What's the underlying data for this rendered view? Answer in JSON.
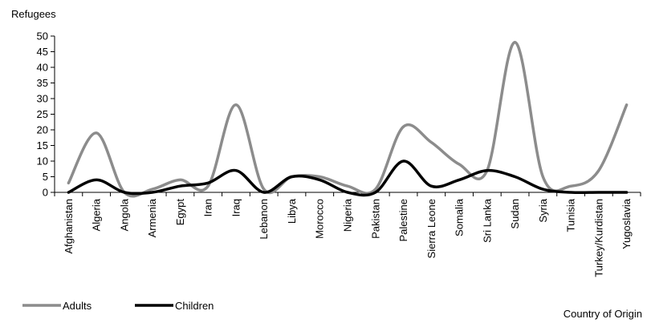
{
  "chart_data": {
    "type": "line",
    "title": "",
    "ylabel": "Refugees",
    "xlabel": "Country of Origin",
    "ylim": [
      0,
      50
    ],
    "yticks": [
      0,
      5,
      10,
      15,
      20,
      25,
      30,
      35,
      40,
      45,
      50
    ],
    "grid": false,
    "legend_position": "bottom-left",
    "smooth": true,
    "categories": [
      "Afghanistan",
      "Algeria",
      "Angola",
      "Armenia",
      "Egypt",
      "Iran",
      "Iraq",
      "Lebanon",
      "Libya",
      "Morocco",
      "Nigeria",
      "Pakistan",
      "Palestine",
      "Sierra Leone",
      "Somalia",
      "Sri Lanka",
      "Sudan",
      "Syria",
      "Tunisia",
      "Turkey/Kurdistan",
      "Yugoslavia"
    ],
    "series": [
      {
        "name": "Adults",
        "color": "#8c8c8c",
        "values": [
          3,
          19,
          0,
          1,
          4,
          2,
          28,
          1,
          5,
          5,
          2,
          1,
          21,
          16,
          9,
          7,
          48,
          5,
          2,
          7,
          28
        ]
      },
      {
        "name": "Children",
        "color": "#000000",
        "values": [
          0,
          4,
          0,
          0,
          2,
          3,
          7,
          0,
          5,
          4,
          0,
          0,
          10,
          2,
          4,
          7,
          5,
          1,
          0,
          0,
          0
        ]
      }
    ]
  }
}
